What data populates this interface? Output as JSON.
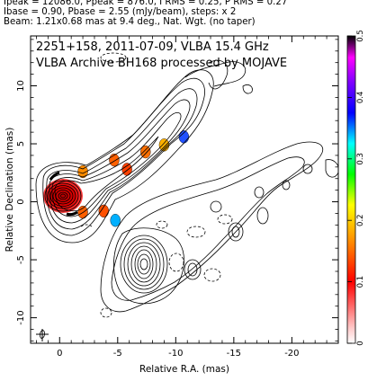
{
  "header": {
    "line1": "Ipeak = 12086.0, Ppeak = 876.0, I RMS = 0.25, P RMS = 0.27",
    "line2": "Ibase = 0.90, Pbase = 2.55 (mJy/beam), steps: x 2",
    "line3": "Beam: 1.21x0.68 mas at 9.4 deg., Nat. Wgt. (no taper)"
  },
  "chart_data": {
    "type": "contour-map",
    "title": "2251+158, 2011-07-09, VLBA 15.4 GHz",
    "subtitle": "VLBA Archive BH168 processed by MOJAVE",
    "xlabel": "Relative R.A. (mas)",
    "ylabel": "Relative Declination (mas)",
    "xlim": [
      2.5,
      -24
    ],
    "ylim": [
      -12.2,
      14.3
    ],
    "x_ticks": [
      0,
      -5,
      -10,
      -15,
      -20
    ],
    "y_ticks": [
      -10,
      -5,
      0,
      5,
      10
    ],
    "colorbar": {
      "range": [
        0,
        0.5
      ],
      "ticks": [
        "0",
        "0.1",
        "0.2",
        "0.3",
        "0.4",
        "0.5"
      ],
      "stops": [
        "#ffffff",
        "#ff9ea0",
        "#ff0000",
        "#ff8000",
        "#ffff00",
        "#00ff00",
        "#00ffff",
        "#0000ff",
        "#8000ff",
        "#ff00ff",
        "#000000"
      ]
    },
    "beam": {
      "major_mas": 1.21,
      "minor_mas": 0.68,
      "pa_deg": 9.4
    },
    "core": {
      "x": 0.4,
      "y": 0.1
    },
    "polarization_knots": [
      {
        "x": -2.0,
        "y": 2.6,
        "color": "#ff8c00"
      },
      {
        "x": -4.7,
        "y": 3.6,
        "color": "#ff6000"
      },
      {
        "x": -5.8,
        "y": 2.8,
        "color": "#ff4000"
      },
      {
        "x": -7.4,
        "y": 4.3,
        "color": "#ff7000"
      },
      {
        "x": -9.0,
        "y": 4.9,
        "color": "#ffb000"
      },
      {
        "x": -10.7,
        "y": 5.6,
        "color": "#2050ff"
      },
      {
        "x": -3.8,
        "y": -0.8,
        "color": "#ff5000"
      },
      {
        "x": -4.8,
        "y": -1.6,
        "color": "#00b0ff"
      },
      {
        "x": -2.0,
        "y": -0.9,
        "color": "#ff6000"
      }
    ]
  }
}
